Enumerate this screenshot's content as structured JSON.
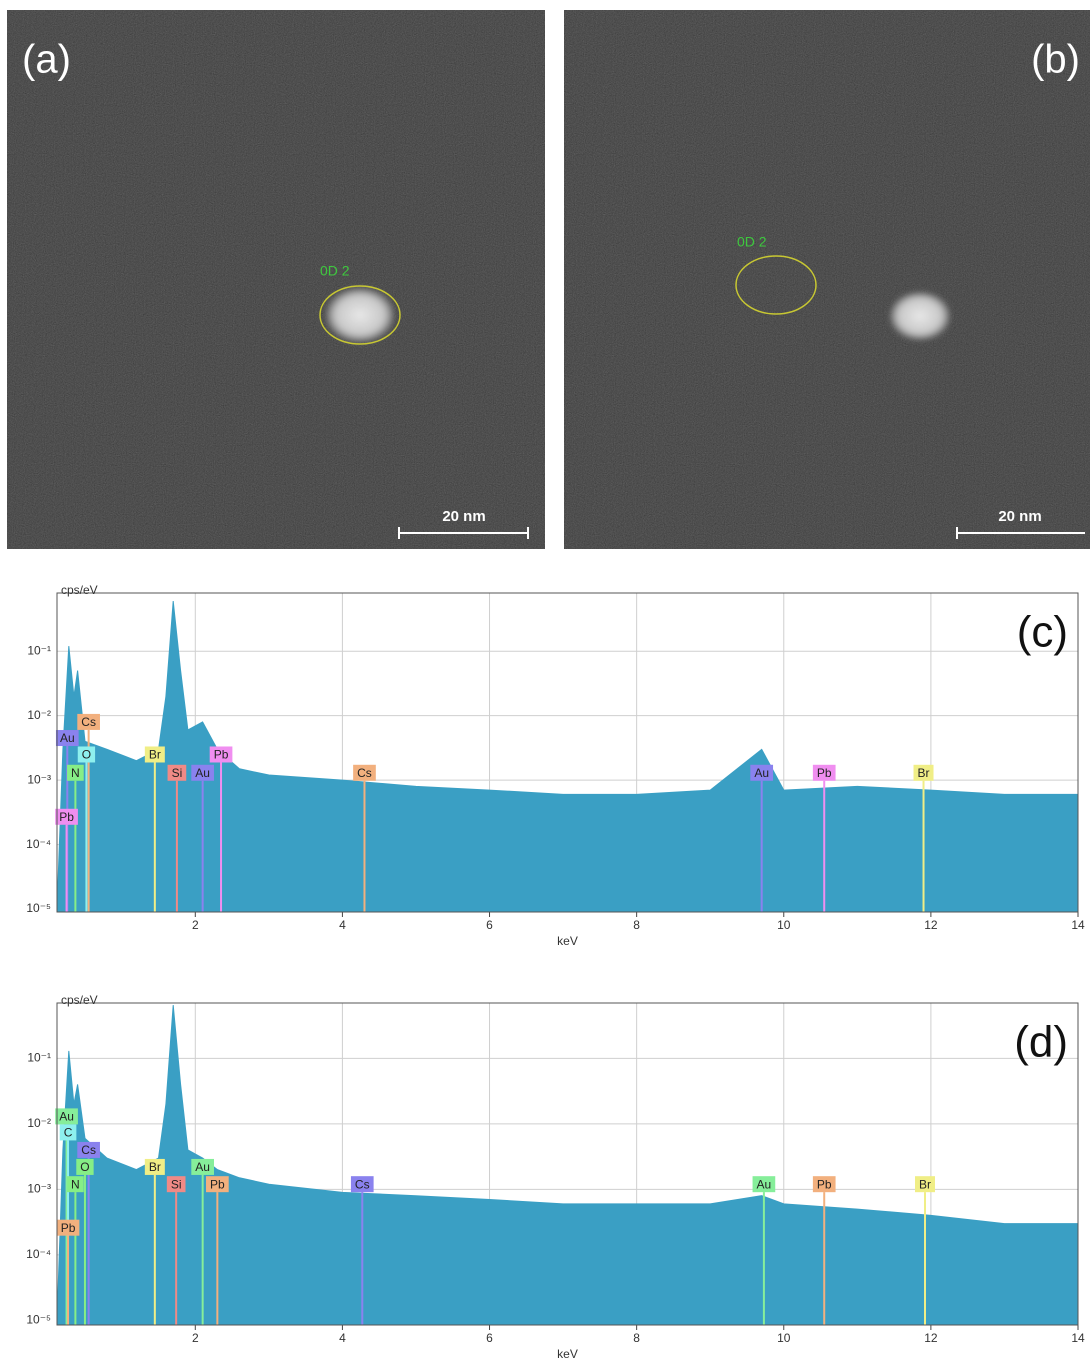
{
  "images": [
    {
      "label": "(a)",
      "roi_label": "0D 2",
      "scale_bar": "20 nm"
    },
    {
      "label": "(b)",
      "roi_label": "0D 2",
      "scale_bar": "20 nm"
    }
  ],
  "chart_data": [
    {
      "type": "area",
      "panel_label": "(c)",
      "y_label": "cps/eV",
      "x_label": "keV",
      "log_y": true,
      "grid": true,
      "color": "#3a9fc4",
      "x": [
        0.12,
        0.2,
        0.28,
        0.35,
        0.4,
        0.5,
        0.8,
        1.2,
        1.5,
        1.6,
        1.7,
        1.8,
        1.9,
        2.1,
        2.3,
        2.6,
        3,
        4,
        5,
        6,
        7,
        8,
        9,
        9.7,
        10,
        11,
        12,
        13,
        14
      ],
      "values": [
        1e-05,
        0.003,
        0.12,
        0.02,
        0.05,
        0.004,
        0.003,
        0.002,
        0.003,
        0.02,
        0.6,
        0.05,
        0.006,
        0.008,
        0.003,
        0.0015,
        0.0012,
        0.001,
        0.0008,
        0.0007,
        0.0006,
        0.0006,
        0.0007,
        0.003,
        0.0007,
        0.0008,
        0.0007,
        0.0006,
        0.0006
      ],
      "xlim": [
        0.12,
        14
      ],
      "ylim": [
        9e-06,
        0.8
      ],
      "xticks": [
        2,
        4,
        6,
        8,
        10,
        12,
        14
      ],
      "yticks": [
        {
          "value": 1e-05,
          "label": "10⁻⁵"
        },
        {
          "value": 0.0001,
          "label": "10⁻⁴"
        },
        {
          "value": 0.001,
          "label": "10⁻³"
        },
        {
          "value": 0.01,
          "label": "10⁻²"
        },
        {
          "value": 0.1,
          "label": "10⁻¹"
        }
      ],
      "markers": [
        {
          "label": "Au",
          "x": 0.26,
          "y": 0.0045,
          "color": "#8a82ee"
        },
        {
          "label": "Cs",
          "x": 0.55,
          "y": 0.008,
          "color": "#f2b07e"
        },
        {
          "label": "O",
          "x": 0.52,
          "y": 0.0025,
          "color": "#8ef0ee"
        },
        {
          "label": "N",
          "x": 0.37,
          "y": 0.0013,
          "color": "#86ee86"
        },
        {
          "label": "Pb",
          "x": 0.25,
          "y": 0.00027,
          "color": "#f08ef0"
        },
        {
          "label": "Br",
          "x": 1.45,
          "y": 0.0025,
          "color": "#f0ee86"
        },
        {
          "label": "Si",
          "x": 1.75,
          "y": 0.0013,
          "color": "#f08a86"
        },
        {
          "label": "Au",
          "x": 2.1,
          "y": 0.0013,
          "color": "#8a82ee"
        },
        {
          "label": "Pb",
          "x": 2.35,
          "y": 0.0025,
          "color": "#f08ef0"
        },
        {
          "label": "Cs",
          "x": 4.3,
          "y": 0.0013,
          "color": "#f2b07e"
        },
        {
          "label": "Au",
          "x": 9.7,
          "y": 0.0013,
          "color": "#8a82ee"
        },
        {
          "label": "Pb",
          "x": 10.55,
          "y": 0.0013,
          "color": "#f08ef0"
        },
        {
          "label": "Br",
          "x": 11.9,
          "y": 0.0013,
          "color": "#f0ee86"
        }
      ]
    },
    {
      "type": "area",
      "panel_label": "(d)",
      "y_label": "cps/eV",
      "x_label": "keV",
      "log_y": true,
      "grid": true,
      "color": "#3a9fc4",
      "x": [
        0.12,
        0.2,
        0.28,
        0.35,
        0.4,
        0.5,
        0.8,
        1.2,
        1.5,
        1.6,
        1.7,
        1.8,
        1.9,
        2.1,
        2.3,
        2.6,
        3,
        4,
        5,
        6,
        7,
        8,
        9,
        9.7,
        10,
        11,
        12,
        13,
        14
      ],
      "values": [
        1e-05,
        0.004,
        0.13,
        0.02,
        0.04,
        0.006,
        0.003,
        0.002,
        0.003,
        0.02,
        0.65,
        0.04,
        0.004,
        0.003,
        0.002,
        0.0015,
        0.0012,
        0.0009,
        0.0008,
        0.0007,
        0.0006,
        0.0006,
        0.0006,
        0.0008,
        0.0006,
        0.0005,
        0.0004,
        0.0003,
        0.0003
      ],
      "xlim": [
        0.12,
        14
      ],
      "ylim": [
        8.5e-06,
        0.7
      ],
      "xticks": [
        2,
        4,
        6,
        8,
        10,
        12,
        14
      ],
      "yticks": [
        {
          "value": 1e-05,
          "label": "10⁻⁵"
        },
        {
          "value": 0.0001,
          "label": "10⁻⁴"
        },
        {
          "value": 0.001,
          "label": "10⁻³"
        },
        {
          "value": 0.01,
          "label": "10⁻²"
        },
        {
          "value": 0.1,
          "label": "10⁻¹"
        }
      ],
      "markers": [
        {
          "label": "Au",
          "x": 0.25,
          "y": 0.013,
          "color": "#86ee9a"
        },
        {
          "label": "C",
          "x": 0.27,
          "y": 0.0074,
          "color": "#8ef0ee"
        },
        {
          "label": "Cs",
          "x": 0.55,
          "y": 0.004,
          "color": "#8a82ee"
        },
        {
          "label": "O",
          "x": 0.5,
          "y": 0.0022,
          "color": "#86ee86"
        },
        {
          "label": "N",
          "x": 0.37,
          "y": 0.0012,
          "color": "#86ee86"
        },
        {
          "label": "Pb",
          "x": 0.27,
          "y": 0.00026,
          "color": "#f2b07e"
        },
        {
          "label": "Br",
          "x": 1.45,
          "y": 0.0022,
          "color": "#f0ee86"
        },
        {
          "label": "Si",
          "x": 1.74,
          "y": 0.0012,
          "color": "#f08a86"
        },
        {
          "label": "Au",
          "x": 2.1,
          "y": 0.0022,
          "color": "#86ee9a"
        },
        {
          "label": "Pb",
          "x": 2.3,
          "y": 0.0012,
          "color": "#f2b07e"
        },
        {
          "label": "Cs",
          "x": 4.27,
          "y": 0.0012,
          "color": "#8a82ee"
        },
        {
          "label": "Au",
          "x": 9.73,
          "y": 0.0012,
          "color": "#86ee9a"
        },
        {
          "label": "Pb",
          "x": 10.55,
          "y": 0.0012,
          "color": "#f2b07e"
        },
        {
          "label": "Br",
          "x": 11.92,
          "y": 0.0012,
          "color": "#f0ee86"
        }
      ]
    }
  ]
}
